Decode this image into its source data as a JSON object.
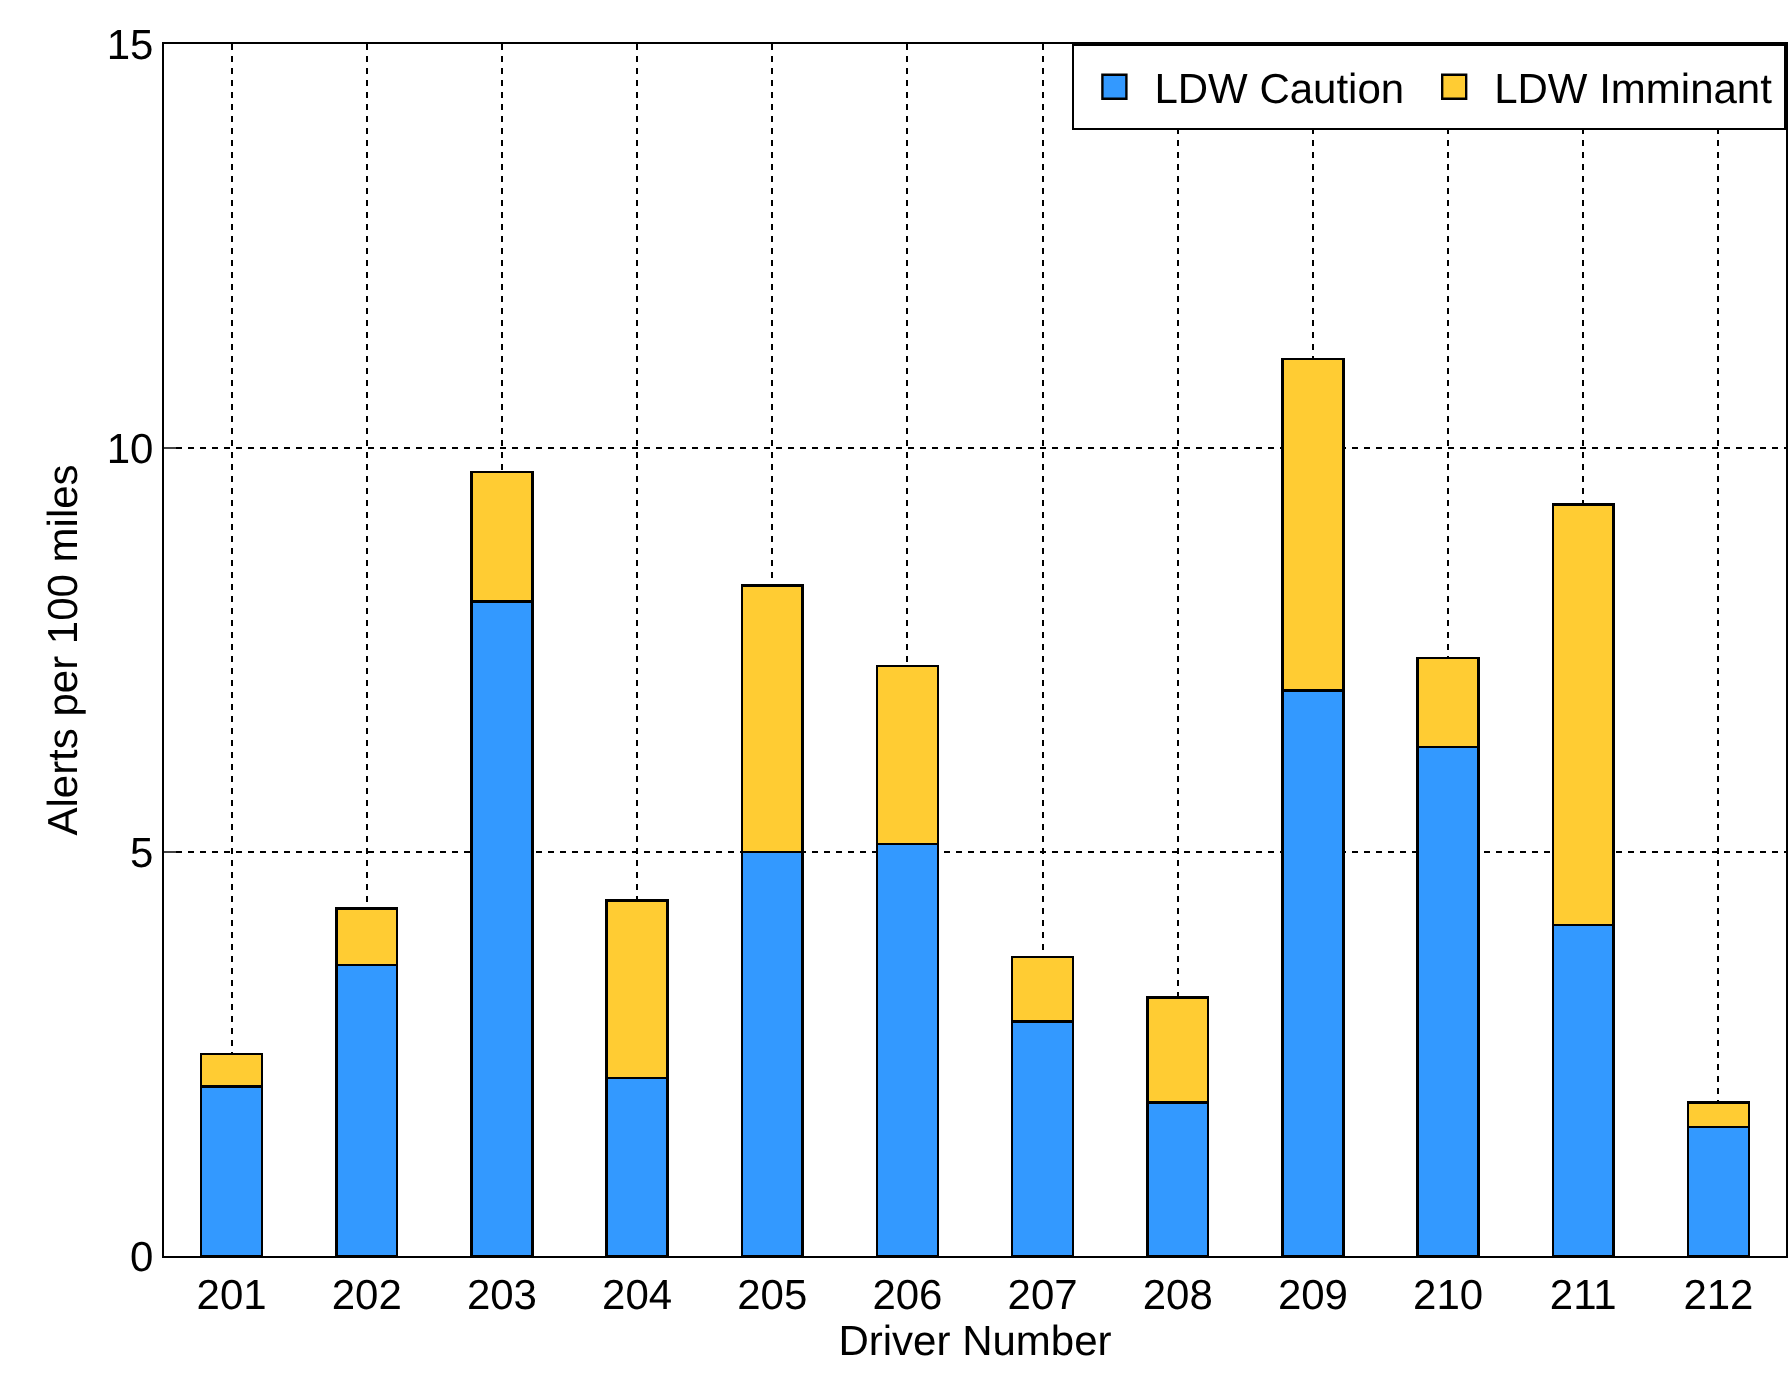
{
  "chart_data": {
    "type": "bar",
    "stacked": true,
    "xlabel": "Driver Number",
    "ylabel": "Alerts per 100 miles",
    "categories": [
      "201",
      "202",
      "203",
      "204",
      "205",
      "206",
      "207",
      "208",
      "209",
      "210",
      "211",
      "212"
    ],
    "series": [
      {
        "name": "LDW Caution",
        "color": "#3399ff",
        "values": [
          2.1,
          3.6,
          8.1,
          2.2,
          5.0,
          5.1,
          2.9,
          1.9,
          7.0,
          6.3,
          4.1,
          1.6
        ]
      },
      {
        "name": "LDW Imminant",
        "color": "#ffcc33",
        "values": [
          0.4,
          0.7,
          1.6,
          2.2,
          3.3,
          2.2,
          0.8,
          1.3,
          4.1,
          1.1,
          5.2,
          0.3
        ]
      }
    ],
    "ylim": [
      0,
      15
    ],
    "yticks": [
      0,
      5,
      10,
      15
    ],
    "grid": true,
    "legend": "top right"
  }
}
